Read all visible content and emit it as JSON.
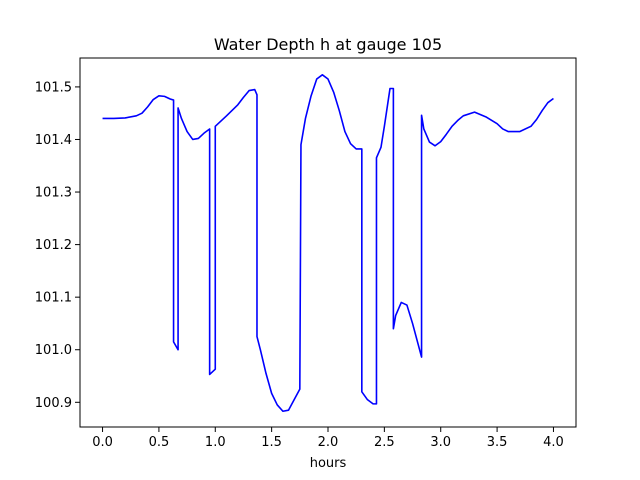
{
  "chart_data": {
    "type": "line",
    "title": "Water Depth h at gauge 105",
    "xlabel": "hours",
    "ylabel": "",
    "xlim": [
      -0.2,
      4.2
    ],
    "ylim": [
      100.853,
      101.555
    ],
    "grid": false,
    "legend": "none",
    "x_ticks": [
      0.0,
      0.5,
      1.0,
      1.5,
      2.0,
      2.5,
      3.0,
      3.5,
      4.0
    ],
    "x_tick_labels": [
      "0.0",
      "0.5",
      "1.0",
      "1.5",
      "2.0",
      "2.5",
      "3.0",
      "3.5",
      "4.0"
    ],
    "y_ticks": [
      100.9,
      101.0,
      101.1,
      101.2,
      101.3,
      101.4,
      101.5
    ],
    "y_tick_labels": [
      "100.9",
      "101.0",
      "101.1",
      "101.2",
      "101.3",
      "101.4",
      "101.5"
    ],
    "series": [
      {
        "color": "#0000ff",
        "x": [
          0.0,
          0.1,
          0.2,
          0.3,
          0.35,
          0.4,
          0.45,
          0.5,
          0.55,
          0.6,
          0.63,
          0.63,
          0.67,
          0.67,
          0.7,
          0.75,
          0.8,
          0.85,
          0.9,
          0.95,
          0.95,
          1.0,
          1.0,
          1.1,
          1.2,
          1.25,
          1.3,
          1.35,
          1.37,
          1.37,
          1.4,
          1.45,
          1.5,
          1.55,
          1.6,
          1.65,
          1.7,
          1.75,
          1.76,
          1.76,
          1.8,
          1.85,
          1.9,
          1.95,
          2.0,
          2.05,
          2.1,
          2.15,
          2.2,
          2.25,
          2.3,
          2.3,
          2.35,
          2.4,
          2.43,
          2.43,
          2.47,
          2.5,
          2.55,
          2.58,
          2.58,
          2.6,
          2.65,
          2.7,
          2.75,
          2.8,
          2.83,
          2.83,
          2.85,
          2.9,
          2.95,
          3.0,
          3.05,
          3.1,
          3.15,
          3.2,
          3.3,
          3.4,
          3.5,
          3.55,
          3.6,
          3.7,
          3.8,
          3.85,
          3.9,
          3.95,
          4.0
        ],
        "y": [
          101.44,
          101.44,
          101.441,
          101.445,
          101.45,
          101.462,
          101.476,
          101.483,
          101.482,
          101.477,
          101.475,
          101.015,
          101.0,
          101.46,
          101.44,
          101.415,
          101.4,
          101.402,
          101.412,
          101.42,
          100.953,
          100.963,
          101.425,
          101.445,
          101.466,
          101.48,
          101.493,
          101.495,
          101.485,
          101.025,
          101.0,
          100.955,
          100.917,
          100.895,
          100.883,
          100.885,
          100.905,
          100.925,
          101.385,
          101.39,
          101.44,
          101.483,
          101.515,
          101.523,
          101.515,
          101.49,
          101.455,
          101.415,
          101.392,
          101.382,
          101.382,
          100.92,
          100.905,
          100.897,
          100.897,
          101.365,
          101.385,
          101.425,
          101.497,
          101.497,
          101.04,
          101.065,
          101.09,
          101.085,
          101.05,
          101.01,
          100.986,
          101.446,
          101.42,
          101.395,
          101.388,
          101.396,
          101.41,
          101.425,
          101.436,
          101.445,
          101.452,
          101.443,
          101.43,
          101.42,
          101.415,
          101.415,
          101.425,
          101.438,
          101.455,
          101.47,
          101.478
        ]
      }
    ]
  }
}
